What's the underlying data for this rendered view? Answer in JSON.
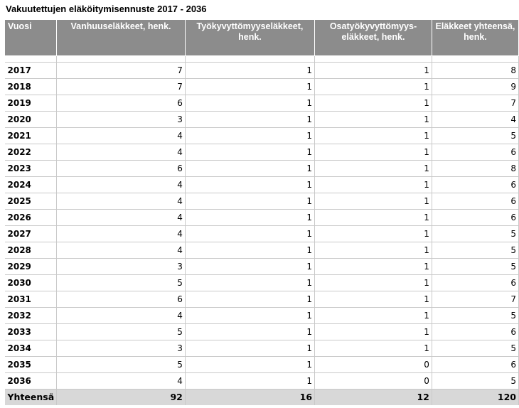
{
  "title": "Vakuutettujen eläköitymisennuste 2017 - 2036",
  "headers": [
    "Vuosi",
    "Vanhuuseläkkeet, henk.",
    "Työkyvyttömyyseläkkeet, henk.",
    "Osatyökyvyttömyys-eläkkeet, henk.",
    "Eläkkeet yhteensä, henk."
  ],
  "rows": [
    [
      "2017",
      "7",
      "1",
      "1",
      "8"
    ],
    [
      "2018",
      "7",
      "1",
      "1",
      "9"
    ],
    [
      "2019",
      "6",
      "1",
      "1",
      "7"
    ],
    [
      "2020",
      "3",
      "1",
      "1",
      "4"
    ],
    [
      "2021",
      "4",
      "1",
      "1",
      "5"
    ],
    [
      "2022",
      "4",
      "1",
      "1",
      "6"
    ],
    [
      "2023",
      "6",
      "1",
      "1",
      "8"
    ],
    [
      "2024",
      "4",
      "1",
      "1",
      "6"
    ],
    [
      "2025",
      "4",
      "1",
      "1",
      "6"
    ],
    [
      "2026",
      "4",
      "1",
      "1",
      "6"
    ],
    [
      "2027",
      "4",
      "1",
      "1",
      "5"
    ],
    [
      "2028",
      "4",
      "1",
      "1",
      "5"
    ],
    [
      "2029",
      "3",
      "1",
      "1",
      "5"
    ],
    [
      "2030",
      "5",
      "1",
      "1",
      "6"
    ],
    [
      "2031",
      "6",
      "1",
      "1",
      "7"
    ],
    [
      "2032",
      "4",
      "1",
      "1",
      "5"
    ],
    [
      "2033",
      "5",
      "1",
      "1",
      "6"
    ],
    [
      "2034",
      "3",
      "1",
      "1",
      "5"
    ],
    [
      "2035",
      "5",
      "1",
      "0",
      "6"
    ],
    [
      "2036",
      "4",
      "1",
      "0",
      "5"
    ]
  ],
  "totals": [
    "Yhteensä",
    "92",
    "16",
    "12",
    "120"
  ],
  "colors": {
    "header_bg": "#8c8c8c",
    "header_text": "#ffffff",
    "total_bg": "#d8d8d8",
    "grid": "#c9c9c9"
  }
}
